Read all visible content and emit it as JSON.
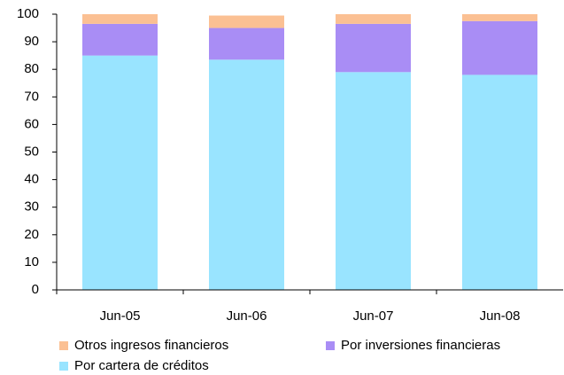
{
  "chart_data": {
    "type": "stacked-bar",
    "categories": [
      "Jun-05",
      "Jun-06",
      "Jun-07",
      "Jun-08"
    ],
    "series": [
      {
        "name": "Por cartera de créditos",
        "color": "#99e4ff",
        "values": [
          85,
          83.5,
          79,
          78
        ]
      },
      {
        "name": "Por inversiones financieras",
        "color": "#a98df5",
        "values": [
          11.5,
          11.5,
          17.5,
          19.5
        ]
      },
      {
        "name": "Otros ingresos financieros",
        "color": "#fbc093",
        "values": [
          3.5,
          4.5,
          3.5,
          2.5
        ]
      }
    ],
    "ylim": [
      0,
      100
    ],
    "yticks": [
      0,
      10,
      20,
      30,
      40,
      50,
      60,
      70,
      80,
      90,
      100
    ],
    "grid": false
  }
}
